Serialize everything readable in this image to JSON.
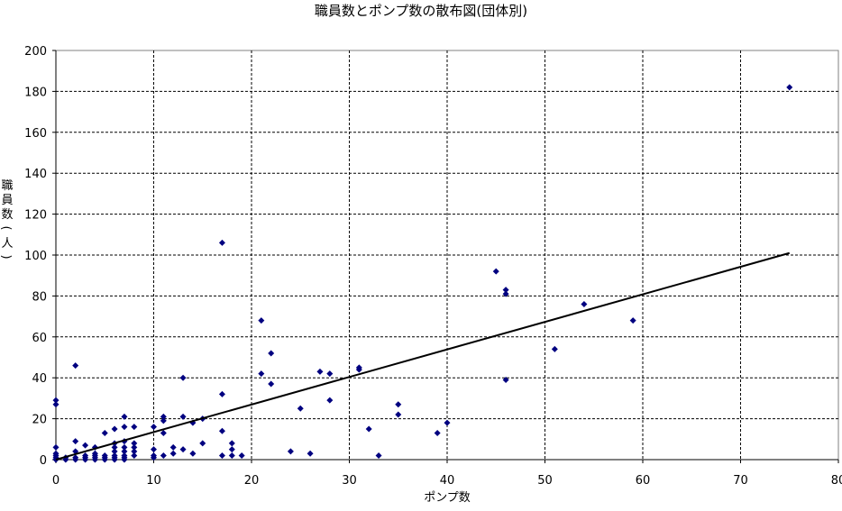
{
  "chart_data": {
    "type": "scatter",
    "title": "職員数とポンプ数の散布図(団体別)",
    "xlabel": "ポンプ数",
    "ylabel": "職員数(人)",
    "xlim": [
      0,
      80
    ],
    "ylim": [
      0,
      200
    ],
    "x_ticks": [
      "0",
      "10",
      "20",
      "30",
      "40",
      "50",
      "60",
      "70",
      "80"
    ],
    "y_ticks": [
      "0",
      "20",
      "40",
      "60",
      "80",
      "100",
      "120",
      "140",
      "160",
      "180",
      "200"
    ],
    "grid": true,
    "legend": "none",
    "marker_color": "#000080",
    "trendline": {
      "type": "linear",
      "x": [
        0,
        75
      ],
      "y": [
        0,
        101
      ]
    },
    "points": [
      [
        0,
        29
      ],
      [
        0,
        27
      ],
      [
        0,
        6
      ],
      [
        0,
        3
      ],
      [
        0,
        2
      ],
      [
        0,
        1
      ],
      [
        0,
        0
      ],
      [
        1,
        1
      ],
      [
        1,
        0
      ],
      [
        2,
        46
      ],
      [
        2,
        9
      ],
      [
        2,
        4
      ],
      [
        2,
        1
      ],
      [
        2,
        0
      ],
      [
        3,
        7
      ],
      [
        3,
        2
      ],
      [
        3,
        1
      ],
      [
        3,
        0
      ],
      [
        4,
        6
      ],
      [
        4,
        3
      ],
      [
        4,
        2
      ],
      [
        4,
        1
      ],
      [
        4,
        0
      ],
      [
        5,
        13
      ],
      [
        5,
        2
      ],
      [
        5,
        1
      ],
      [
        5,
        0
      ],
      [
        6,
        15
      ],
      [
        6,
        8
      ],
      [
        6,
        6
      ],
      [
        6,
        4
      ],
      [
        6,
        2
      ],
      [
        6,
        1
      ],
      [
        6,
        0
      ],
      [
        7,
        21
      ],
      [
        7,
        16
      ],
      [
        7,
        9
      ],
      [
        7,
        6
      ],
      [
        7,
        4
      ],
      [
        7,
        2
      ],
      [
        7,
        1
      ],
      [
        7,
        0
      ],
      [
        8,
        16
      ],
      [
        8,
        8
      ],
      [
        8,
        6
      ],
      [
        8,
        4
      ],
      [
        8,
        2
      ],
      [
        10,
        16
      ],
      [
        10,
        5
      ],
      [
        10,
        2
      ],
      [
        10,
        1
      ],
      [
        11,
        21
      ],
      [
        11,
        19
      ],
      [
        11,
        13
      ],
      [
        11,
        2
      ],
      [
        12,
        6
      ],
      [
        12,
        3
      ],
      [
        13,
        40
      ],
      [
        13,
        21
      ],
      [
        13,
        5
      ],
      [
        14,
        18
      ],
      [
        14,
        3
      ],
      [
        15,
        20
      ],
      [
        15,
        8
      ],
      [
        17,
        106
      ],
      [
        17,
        32
      ],
      [
        17,
        14
      ],
      [
        17,
        2
      ],
      [
        18,
        8
      ],
      [
        18,
        5
      ],
      [
        18,
        2
      ],
      [
        19,
        2
      ],
      [
        21,
        68
      ],
      [
        21,
        42
      ],
      [
        22,
        52
      ],
      [
        22,
        37
      ],
      [
        24,
        4
      ],
      [
        25,
        25
      ],
      [
        26,
        3
      ],
      [
        27,
        43
      ],
      [
        28,
        42
      ],
      [
        28,
        29
      ],
      [
        31,
        45
      ],
      [
        31,
        44
      ],
      [
        32,
        15
      ],
      [
        33,
        2
      ],
      [
        35,
        27
      ],
      [
        35,
        22
      ],
      [
        39,
        13
      ],
      [
        40,
        18
      ],
      [
        45,
        92
      ],
      [
        46,
        83
      ],
      [
        46,
        81
      ],
      [
        46,
        39
      ],
      [
        51,
        54
      ],
      [
        54,
        76
      ],
      [
        59,
        68
      ],
      [
        75,
        182
      ]
    ]
  }
}
